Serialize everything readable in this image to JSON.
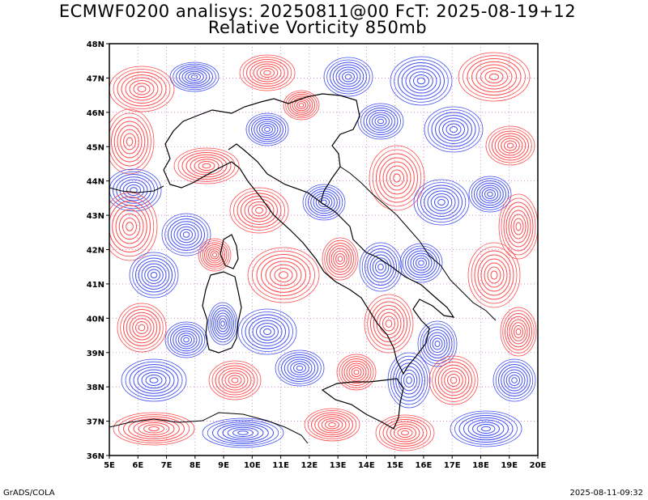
{
  "header": {
    "title_line1": "ECMWF0200 analisys: 20250811@00 FcT: 2025-08-19+12",
    "title_line2": "Relative Vorticity 850mb"
  },
  "map": {
    "lon_range": [
      5,
      20
    ],
    "lat_range": [
      36,
      48
    ],
    "lon_ticks": [
      "5E",
      "6E",
      "7E",
      "8E",
      "9E",
      "10E",
      "11E",
      "12E",
      "13E",
      "14E",
      "15E",
      "16E",
      "17E",
      "18E",
      "19E",
      "20E"
    ],
    "lat_ticks": [
      "36N",
      "37N",
      "38N",
      "39N",
      "40N",
      "41N",
      "42N",
      "43N",
      "44N",
      "45N",
      "46N",
      "47N",
      "48N"
    ],
    "colors": {
      "positive": "#ff4a4a",
      "negative": "#3f4ff0",
      "coast": "#000000",
      "grid": "#c080c0"
    }
  },
  "footer": {
    "left": "GrADS/COLA",
    "right": "2025-08-11-09:32"
  }
}
